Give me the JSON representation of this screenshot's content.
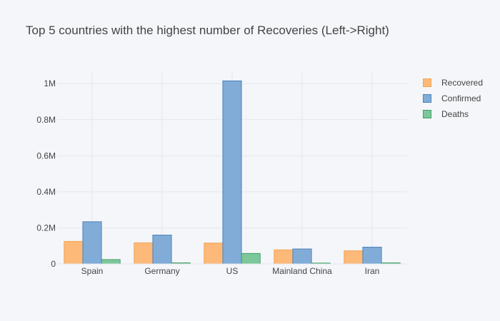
{
  "chart_data": {
    "type": "bar",
    "title": "Top 5 countries with the highest number of Recoveries (Left->Right)",
    "categories": [
      "Spain",
      "Germany",
      "US",
      "Mainland China",
      "Iran"
    ],
    "series": [
      {
        "name": "Recovered",
        "values": [
          125000,
          117000,
          116000,
          78000,
          73000
        ],
        "color": "#fdb978",
        "stroke": "#f3a457"
      },
      {
        "name": "Confirmed",
        "values": [
          234000,
          160000,
          1015000,
          83000,
          93000
        ],
        "color": "#80acd7",
        "stroke": "#4f83b8"
      },
      {
        "name": "Deaths",
        "values": [
          24000,
          6000,
          58000,
          4600,
          6000
        ],
        "color": "#7dc79b",
        "stroke": "#3fa065"
      }
    ],
    "xlabel": "",
    "ylabel": "",
    "ylim": [
      0,
      1068000
    ],
    "yticks": [
      0,
      200000,
      400000,
      600000,
      800000,
      1000000
    ],
    "ytick_labels": [
      "0",
      "0.2M",
      "0.4M",
      "0.6M",
      "0.8M",
      "1M"
    ],
    "grid": true,
    "legend_position": "top-right"
  }
}
